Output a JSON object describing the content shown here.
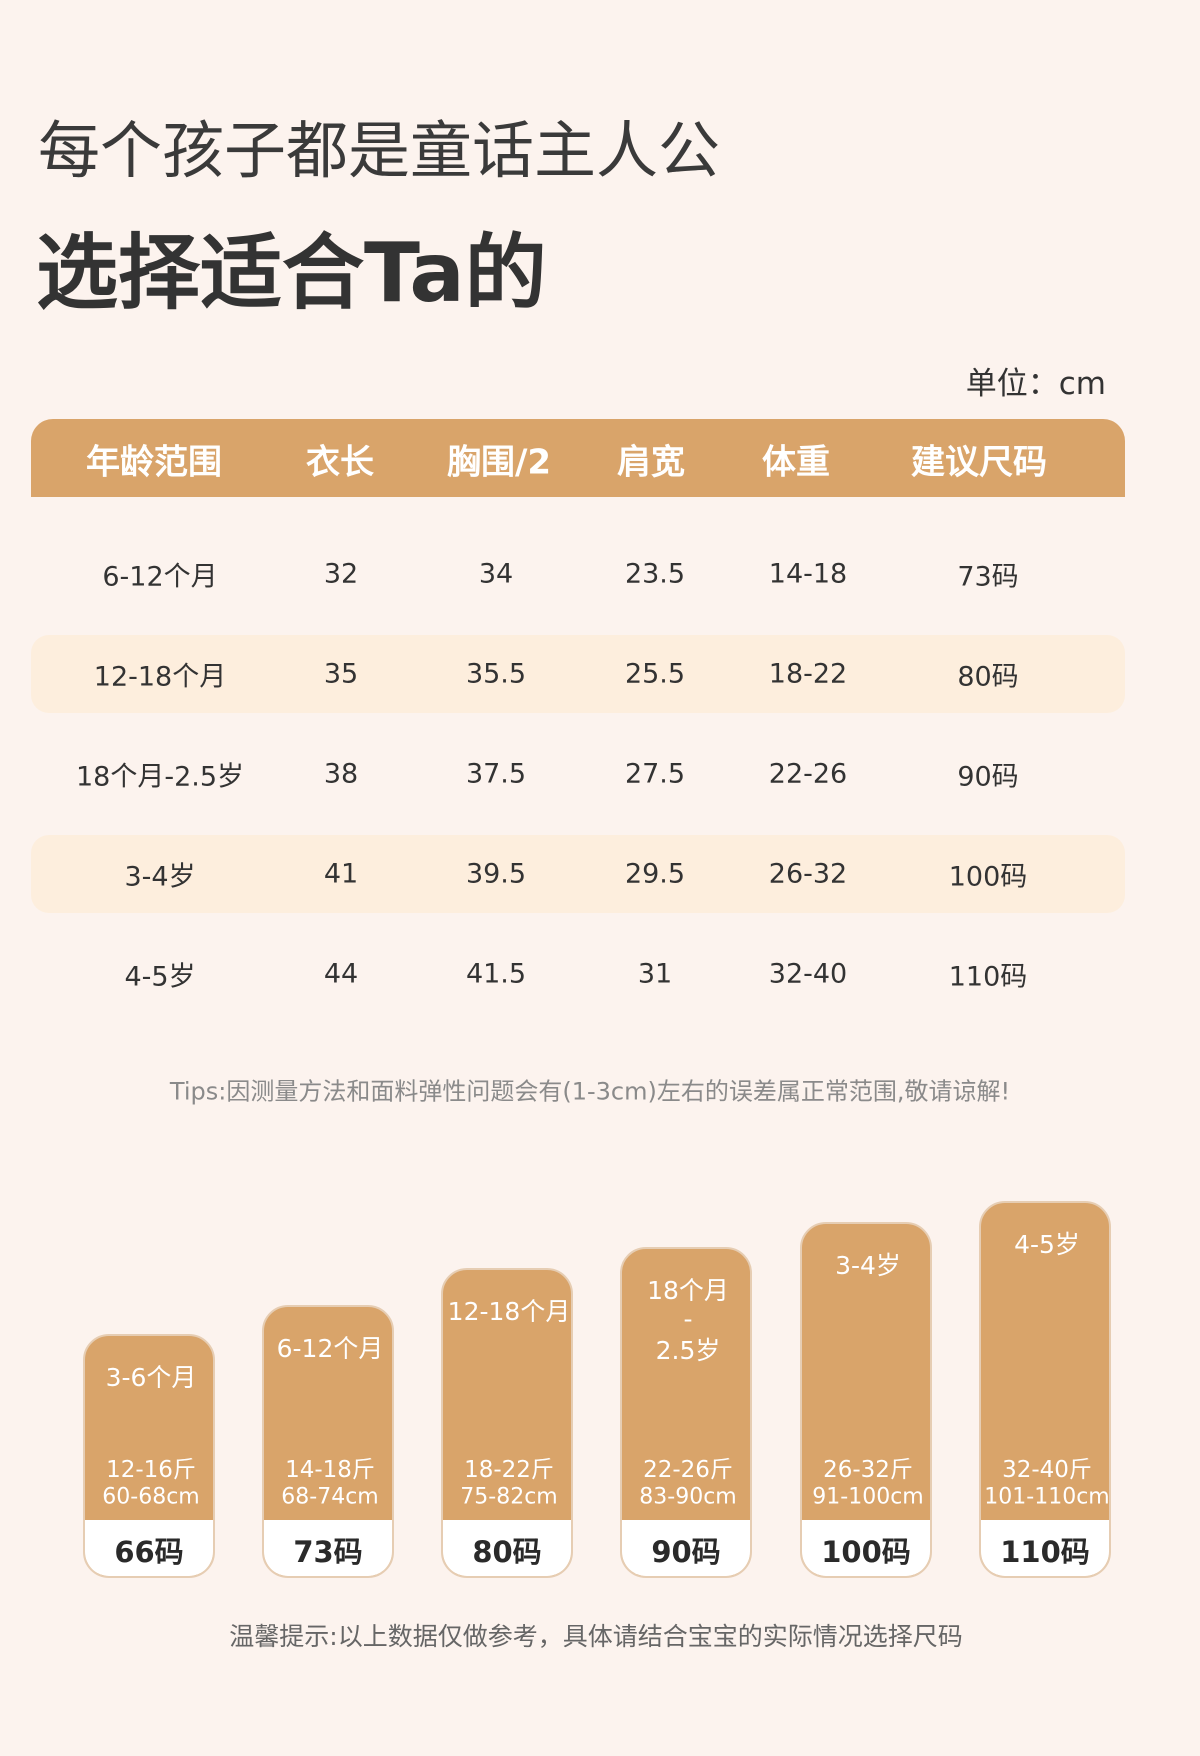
{
  "header": {
    "line1": "每个孩子都是童话主人公",
    "line2": "选择适合Ta的"
  },
  "unit": "单位：cm",
  "table": {
    "headers": [
      "年龄范围",
      "衣长",
      "胸围/2",
      "肩宽",
      "体重",
      "建议尺码"
    ],
    "rows": [
      [
        "6-12个月",
        "32",
        "34",
        "23.5",
        "14-18",
        "73码"
      ],
      [
        "12-18个月",
        "35",
        "35.5",
        "25.5",
        "18-22",
        "80码"
      ],
      [
        "18个月-2.5岁",
        "38",
        "37.5",
        "27.5",
        "22-26",
        "90码"
      ],
      [
        "3-4岁",
        "41",
        "39.5",
        "29.5",
        "26-32",
        "100码"
      ],
      [
        "4-5岁",
        "44",
        "41.5",
        "31",
        "32-40",
        "110码"
      ]
    ]
  },
  "tips": "Tips:因测量方法和面料弹性问题会有(1-3cm)左右的误差属正常范围,敬请谅解!",
  "cards": [
    {
      "age": [
        "3-6个月"
      ],
      "weight": "12-16斤",
      "height": "60-68cm",
      "size": "66码"
    },
    {
      "age": [
        "6-12个月"
      ],
      "weight": "14-18斤",
      "height": "68-74cm",
      "size": "73码"
    },
    {
      "age": [
        "12-18个月"
      ],
      "weight": "18-22斤",
      "height": "75-82cm",
      "size": "80码"
    },
    {
      "age": [
        "18个月",
        "-",
        "2.5岁"
      ],
      "weight": "22-26斤",
      "height": "83-90cm",
      "size": "90码"
    },
    {
      "age": [
        "3-4岁"
      ],
      "weight": "26-32斤",
      "height": "91-100cm",
      "size": "100码"
    },
    {
      "age": [
        "4-5岁"
      ],
      "weight": "32-40斤",
      "height": "101-110cm",
      "size": "110码"
    }
  ],
  "footnote": "温馨提示:以上数据仅做参考，具体请结合宝宝的实际情况选择尺码"
}
